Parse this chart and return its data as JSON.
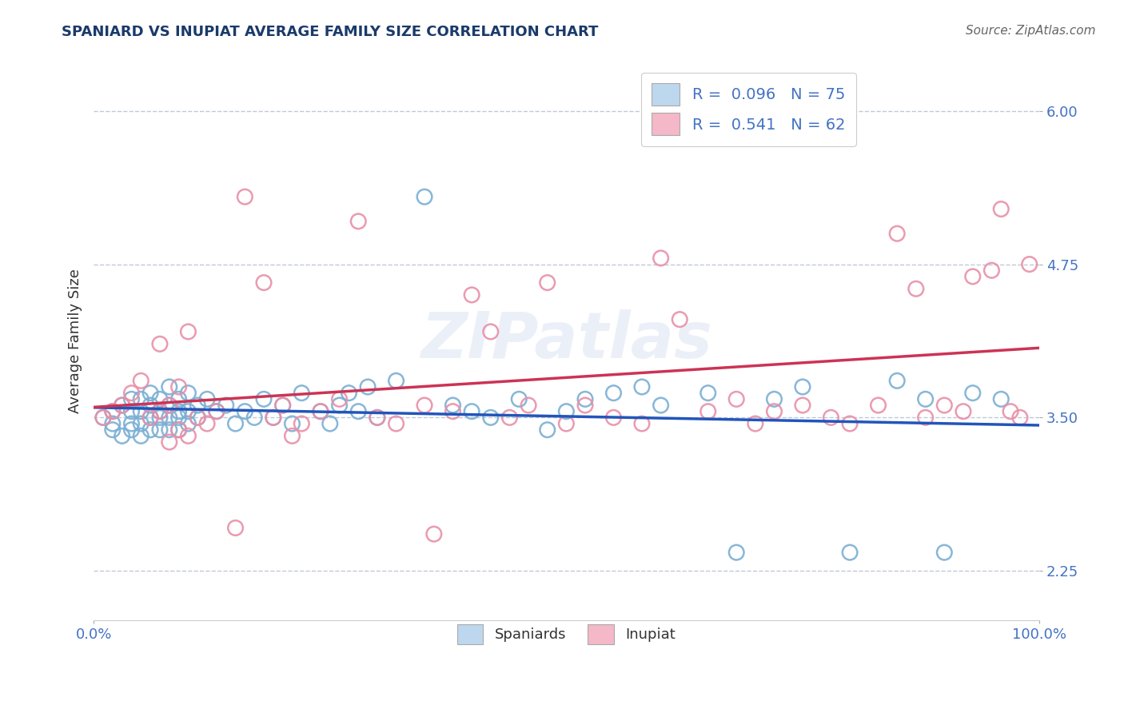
{
  "title": "SPANIARD VS INUPIAT AVERAGE FAMILY SIZE CORRELATION CHART",
  "source": "Source: ZipAtlas.com",
  "ylabel": "Average Family Size",
  "xlim": [
    0,
    1
  ],
  "ylim": [
    1.85,
    6.4
  ],
  "yticks": [
    2.25,
    3.5,
    4.75,
    6.0
  ],
  "xticks": [
    0.0,
    1.0
  ],
  "xticklabels": [
    "0.0%",
    "100.0%"
  ],
  "title_color": "#1a3a6b",
  "axis_color": "#4472c4",
  "background_color": "#ffffff",
  "grid_color": "#c0c8d8",
  "spaniards_edge_color": "#7bafd4",
  "inupiat_edge_color": "#e890a8",
  "spaniards_line_color": "#2255bb",
  "inupiat_line_color": "#cc3355",
  "watermark": "ZIPatlas",
  "spaniards_x": [
    0.01,
    0.02,
    0.02,
    0.02,
    0.03,
    0.03,
    0.04,
    0.04,
    0.04,
    0.04,
    0.05,
    0.05,
    0.05,
    0.05,
    0.06,
    0.06,
    0.06,
    0.06,
    0.07,
    0.07,
    0.07,
    0.07,
    0.08,
    0.08,
    0.08,
    0.08,
    0.09,
    0.09,
    0.09,
    0.09,
    0.1,
    0.1,
    0.1,
    0.11,
    0.11,
    0.12,
    0.13,
    0.14,
    0.15,
    0.16,
    0.17,
    0.18,
    0.19,
    0.2,
    0.21,
    0.22,
    0.24,
    0.25,
    0.26,
    0.27,
    0.28,
    0.29,
    0.3,
    0.32,
    0.35,
    0.38,
    0.4,
    0.42,
    0.45,
    0.48,
    0.5,
    0.52,
    0.55,
    0.58,
    0.6,
    0.65,
    0.68,
    0.72,
    0.75,
    0.8,
    0.85,
    0.88,
    0.9,
    0.93,
    0.96
  ],
  "spaniards_y": [
    3.5,
    3.45,
    3.55,
    3.4,
    3.6,
    3.35,
    3.65,
    3.45,
    3.55,
    3.4,
    3.55,
    3.65,
    3.45,
    3.35,
    3.7,
    3.5,
    3.4,
    3.6,
    3.65,
    3.5,
    3.4,
    3.55,
    3.75,
    3.6,
    3.5,
    3.4,
    3.65,
    3.5,
    3.4,
    3.55,
    3.7,
    3.55,
    3.45,
    3.6,
    3.5,
    3.65,
    3.55,
    3.6,
    3.45,
    3.55,
    3.5,
    3.65,
    3.5,
    3.6,
    3.45,
    3.7,
    3.55,
    3.45,
    3.6,
    3.7,
    3.55,
    3.75,
    3.5,
    3.8,
    5.3,
    3.6,
    3.55,
    3.5,
    3.65,
    3.4,
    3.55,
    3.65,
    3.7,
    3.75,
    3.6,
    3.7,
    2.4,
    3.65,
    3.75,
    2.4,
    3.8,
    3.65,
    2.4,
    3.7,
    3.65
  ],
  "inupiat_x": [
    0.01,
    0.02,
    0.03,
    0.04,
    0.05,
    0.06,
    0.07,
    0.07,
    0.08,
    0.08,
    0.09,
    0.09,
    0.1,
    0.1,
    0.11,
    0.12,
    0.13,
    0.15,
    0.16,
    0.18,
    0.19,
    0.2,
    0.21,
    0.22,
    0.24,
    0.26,
    0.28,
    0.3,
    0.32,
    0.35,
    0.36,
    0.38,
    0.4,
    0.42,
    0.44,
    0.46,
    0.48,
    0.5,
    0.52,
    0.55,
    0.58,
    0.6,
    0.62,
    0.65,
    0.68,
    0.7,
    0.72,
    0.75,
    0.78,
    0.8,
    0.83,
    0.85,
    0.87,
    0.88,
    0.9,
    0.92,
    0.93,
    0.95,
    0.96,
    0.97,
    0.98,
    0.99
  ],
  "inupiat_y": [
    3.5,
    3.55,
    3.6,
    3.7,
    3.8,
    3.5,
    3.55,
    4.1,
    3.6,
    3.3,
    3.75,
    3.4,
    3.35,
    4.2,
    3.5,
    3.45,
    3.55,
    2.6,
    5.3,
    4.6,
    3.5,
    3.6,
    3.35,
    3.45,
    3.55,
    3.65,
    5.1,
    3.5,
    3.45,
    3.6,
    2.55,
    3.55,
    4.5,
    4.2,
    3.5,
    3.6,
    4.6,
    3.45,
    3.6,
    3.5,
    3.45,
    4.8,
    4.3,
    3.55,
    3.65,
    3.45,
    3.55,
    3.6,
    3.5,
    3.45,
    3.6,
    5.0,
    4.55,
    3.5,
    3.6,
    3.55,
    4.65,
    4.7,
    5.2,
    3.55,
    3.5,
    4.75
  ]
}
